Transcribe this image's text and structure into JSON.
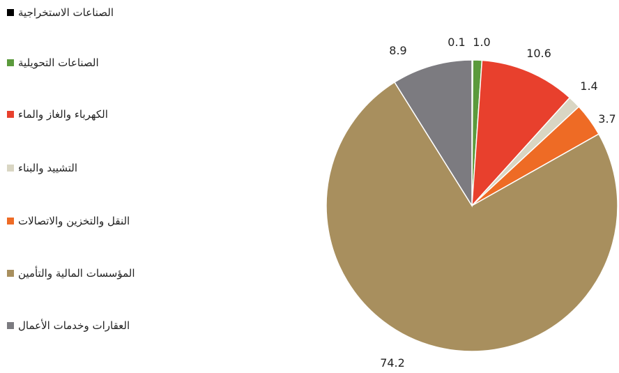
{
  "chart_data": {
    "type": "pie",
    "title": "",
    "slices": [
      {
        "name": "الصناعات الاستخراجية",
        "value": 0.1,
        "label": "0.1",
        "color": "#000000"
      },
      {
        "name": "الصناعات التحويلية",
        "value": 1.0,
        "label": "1.0",
        "color": "#5b9a3c"
      },
      {
        "name": "الكهرباء والغاز والماء",
        "value": 10.6,
        "label": "10.6",
        "color": "#e8402d"
      },
      {
        "name": "التشييد والبناء",
        "value": 1.4,
        "label": "1.4",
        "color": "#d9d6c3"
      },
      {
        "name": "النقل والتخزين والاتصالات",
        "value": 3.7,
        "label": "3.7",
        "color": "#ee6b25"
      },
      {
        "name": "المؤسسات المالية والتأمين",
        "value": 74.2,
        "label": "74.2",
        "color": "#a88f5e"
      },
      {
        "name": "العقارات وخدمات الأعمال",
        "value": 8.9,
        "label": "8.9",
        "color": "#7c7b80"
      }
    ],
    "start_angle_deg": 0,
    "direction": "clockwise",
    "legend_position": "left"
  }
}
